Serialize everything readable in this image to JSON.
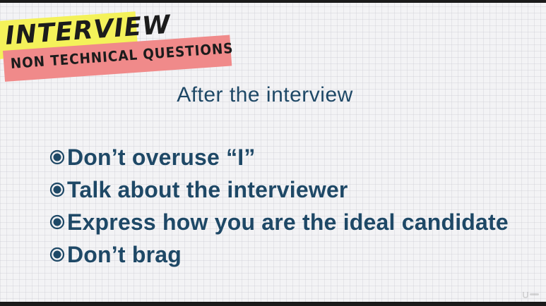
{
  "badge": {
    "line1": "INTERVIEW",
    "line2": "NON TECHNICAL QUESTIONS"
  },
  "slide": {
    "title": "After the interview",
    "bullets": [
      {
        "text": "Don’t overuse “I”"
      },
      {
        "text": "Talk about the interviewer"
      },
      {
        "text": "Express how you are the ideal candidate"
      },
      {
        "text": "Don’t brag"
      }
    ]
  },
  "colors": {
    "accent_text": "#1e4866",
    "badge_yellow": "#f4f25a",
    "badge_red": "#f08a8a",
    "background": "#f3f3f5"
  },
  "icons": {
    "bullet": "circle-bullet-icon",
    "watermark": "udemy-logo-icon"
  }
}
